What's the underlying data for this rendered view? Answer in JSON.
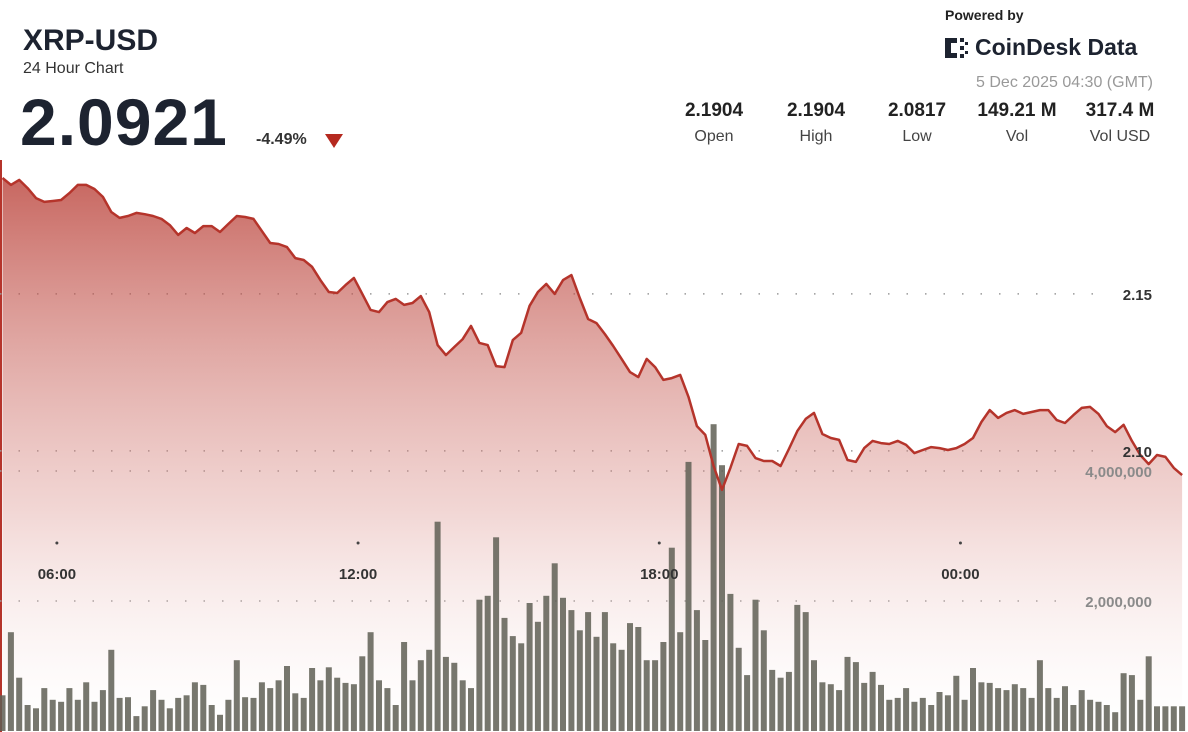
{
  "header": {
    "symbol": "XRP-USD",
    "subtitle": "24 Hour Chart",
    "price": "2.0921",
    "change": "-4.49%",
    "powered_by": "Powered by",
    "brand": "CoinDesk Data",
    "timestamp": "5 Dec 2025 04:30 (GMT)"
  },
  "stats": [
    {
      "value": "2.1904",
      "label": "Open"
    },
    {
      "value": "2.1904",
      "label": "High"
    },
    {
      "value": "2.0817",
      "label": "Low"
    },
    {
      "value": "149.21 M",
      "label": "Vol"
    },
    {
      "value": "317.4 M",
      "label": "Vol USD"
    }
  ],
  "chart_data": {
    "type": "area",
    "x": [
      295,
      305,
      315,
      325,
      335,
      345,
      355,
      365,
      375,
      385,
      395,
      405,
      415,
      425,
      435,
      445,
      455,
      465,
      475,
      485,
      495,
      505,
      515,
      525,
      535,
      545,
      555,
      565,
      575,
      585,
      595,
      605,
      615,
      625,
      635,
      645,
      655,
      665,
      675,
      685,
      695,
      705,
      715,
      725,
      735,
      745,
      755,
      765,
      775,
      785,
      795,
      805,
      815,
      825,
      835,
      845,
      855,
      865,
      875,
      885,
      895,
      905,
      915,
      925,
      935,
      945,
      955,
      965,
      975,
      985,
      995,
      1005,
      1015,
      1025,
      1035,
      1045,
      1055,
      1065,
      1075,
      1085,
      1095,
      1105,
      1115,
      1125,
      1135,
      1145,
      1155,
      1165,
      1175,
      1185,
      1195,
      1205,
      1215,
      1225,
      1235,
      1245,
      1255,
      1265,
      1275,
      1285,
      1295,
      1305,
      1315,
      1325,
      1335,
      1345,
      1355,
      1365,
      1375,
      1385,
      1395,
      1405,
      1415,
      1425,
      1435,
      1445,
      1455,
      1465,
      1475,
      1485,
      1495,
      1505,
      1515,
      1525,
      1535,
      1545,
      1555,
      1565,
      1575,
      1585,
      1595,
      1605,
      1615,
      1625,
      1635,
      1645,
      1655,
      1665,
      1675,
      1685,
      1695,
      1705
    ],
    "xlim": [
      292,
      1712
    ],
    "xticks": [
      {
        "value": 360,
        "label": "06:00"
      },
      {
        "value": 720,
        "label": "12:00"
      },
      {
        "value": 1080,
        "label": "18:00"
      },
      {
        "value": 1440,
        "label": "00:00"
      }
    ],
    "ylim": [
      2.0108,
      2.2436
    ],
    "yticks": [
      2.15,
      {
        "value": 2.1,
        "label": "2.10"
      }
    ],
    "y2lim": [
      0,
      11246154
    ],
    "y2ticks": [
      {
        "value": 4000000,
        "label": "4,000,000"
      },
      {
        "value": 2000000,
        "label": "2,000,000"
      }
    ],
    "grid": true,
    "series": [
      {
        "color": "#b5342b",
        "values": [
          2.1869,
          2.1847,
          2.1863,
          2.1837,
          2.1805,
          2.1793,
          2.1796,
          2.1799,
          2.1821,
          2.1847,
          2.1847,
          2.1834,
          2.1809,
          2.1761,
          2.1742,
          2.1748,
          2.1758,
          2.1754,
          2.1748,
          2.1739,
          2.1719,
          2.1688,
          2.171,
          2.1694,
          2.1716,
          2.1716,
          2.1697,
          2.1723,
          2.1748,
          2.1745,
          2.1739,
          2.17,
          2.1662,
          2.1659,
          2.1649,
          2.1614,
          2.1608,
          2.1586,
          2.1544,
          2.1506,
          2.1503,
          2.1528,
          2.1551,
          2.15,
          2.1449,
          2.1442,
          2.1474,
          2.1484,
          2.1465,
          2.1471,
          2.1493,
          2.1442,
          2.1337,
          2.1305,
          2.1331,
          2.1356,
          2.1398,
          2.1344,
          2.1337,
          2.127,
          2.1267,
          2.1353,
          2.1376,
          2.1462,
          2.1506,
          2.1532,
          2.15,
          2.1544,
          2.156,
          2.1487,
          2.142,
          2.1407,
          2.1372,
          2.1334,
          2.1293,
          2.1251,
          2.1235,
          2.1293,
          2.1267,
          2.1226,
          2.1232,
          2.1242,
          2.1172,
          2.1079,
          2.1051,
          2.0952,
          2.0876,
          2.0946,
          2.1022,
          2.1016,
          2.0977,
          2.0968,
          2.0968,
          2.0952,
          2.1006,
          2.1063,
          2.1102,
          2.1121,
          2.1054,
          2.1041,
          2.1035,
          2.0971,
          2.0965,
          2.1009,
          2.1032,
          2.1025,
          2.1022,
          2.1032,
          2.1019,
          2.0993,
          2.1003,
          2.1012,
          2.1009,
          2.1003,
          2.1009,
          2.1022,
          2.1041,
          2.1092,
          2.113,
          2.1105,
          2.1121,
          2.113,
          2.1118,
          2.1124,
          2.113,
          2.113,
          2.1098,
          2.1089,
          2.1114,
          2.1137,
          2.114,
          2.1118,
          2.1079,
          2.106,
          2.1083,
          2.1032,
          2.0987,
          2.0958,
          2.0987,
          2.0981,
          2.0946,
          2.0923
        ]
      },
      {
        "type": "bar",
        "axis": "y2",
        "color": "#5f5f55",
        "values": [
          550000,
          1520000,
          820000,
          400000,
          350000,
          660000,
          480000,
          450000,
          660000,
          480000,
          750000,
          450000,
          630000,
          1250000,
          510000,
          520000,
          230000,
          380000,
          630000,
          480000,
          350000,
          510000,
          550000,
          750000,
          710000,
          400000,
          250000,
          480000,
          1090000,
          520000,
          510000,
          750000,
          660000,
          780000,
          1000000,
          580000,
          510000,
          970000,
          780000,
          980000,
          820000,
          740000,
          720000,
          1150000,
          1520000,
          780000,
          660000,
          400000,
          1370000,
          780000,
          1090000,
          1250000,
          3220000,
          1140000,
          1050000,
          780000,
          660000,
          2020000,
          2080000,
          2980000,
          1740000,
          1460000,
          1350000,
          1970000,
          1680000,
          2080000,
          2580000,
          2050000,
          1860000,
          1550000,
          1830000,
          1450000,
          1830000,
          1350000,
          1250000,
          1660000,
          1600000,
          1090000,
          1090000,
          1370000,
          2820000,
          1520000,
          4140000,
          1860000,
          1400000,
          4720000,
          4090000,
          2110000,
          1280000,
          860000,
          2020000,
          1550000,
          940000,
          820000,
          910000,
          1940000,
          1830000,
          1090000,
          750000,
          720000,
          630000,
          1140000,
          1060000,
          740000,
          910000,
          710000,
          480000,
          510000,
          660000,
          450000,
          510000,
          400000,
          600000,
          550000,
          850000,
          480000,
          970000,
          750000,
          740000,
          660000,
          630000,
          720000,
          660000,
          510000,
          1090000,
          660000,
          510000,
          690000,
          400000,
          630000,
          480000,
          450000,
          400000,
          290000,
          890000,
          860000,
          480000,
          1150000,
          380000,
          380000,
          380000,
          380000
        ]
      }
    ]
  }
}
